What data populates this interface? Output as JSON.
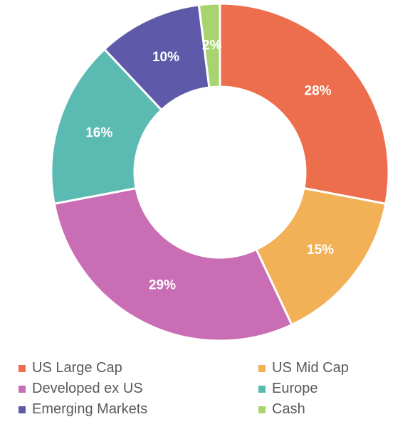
{
  "chart_data": {
    "type": "pie",
    "donut": true,
    "series": [
      {
        "name": "US Large Cap",
        "value": 28,
        "label": "28%",
        "color": "#EC6E4C"
      },
      {
        "name": "US Mid Cap",
        "value": 15,
        "label": "15%",
        "color": "#F2B057"
      },
      {
        "name": "Developed ex US",
        "value": 29,
        "label": "29%",
        "color": "#C96DB5"
      },
      {
        "name": "Europe",
        "value": 16,
        "label": "16%",
        "color": "#5BBBB2"
      },
      {
        "name": "Emerging Markets",
        "value": 10,
        "label": "10%",
        "color": "#5E5AA9"
      },
      {
        "name": "Cash",
        "value": 2,
        "label": "2%",
        "color": "#A8D46F"
      }
    ],
    "legend_position": "bottom",
    "legend_order": [
      "US Large Cap",
      "US Mid Cap",
      "Developed ex US",
      "Europe",
      "Emerging Markets",
      "Cash"
    ]
  }
}
